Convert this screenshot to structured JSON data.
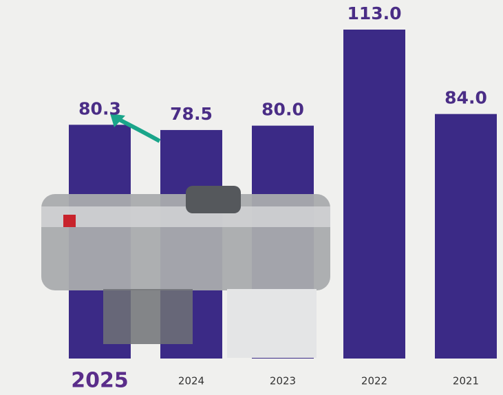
{
  "chart_data": {
    "type": "bar",
    "categories": [
      "2025",
      "2024",
      "2023",
      "2022",
      "2021"
    ],
    "values": [
      80.3,
      78.5,
      80.0,
      113.0,
      84.0
    ],
    "value_labels": [
      "80.3",
      "78.5",
      "80.0",
      "113.0",
      "84.0"
    ],
    "color": "#3b2a86"
  }
}
